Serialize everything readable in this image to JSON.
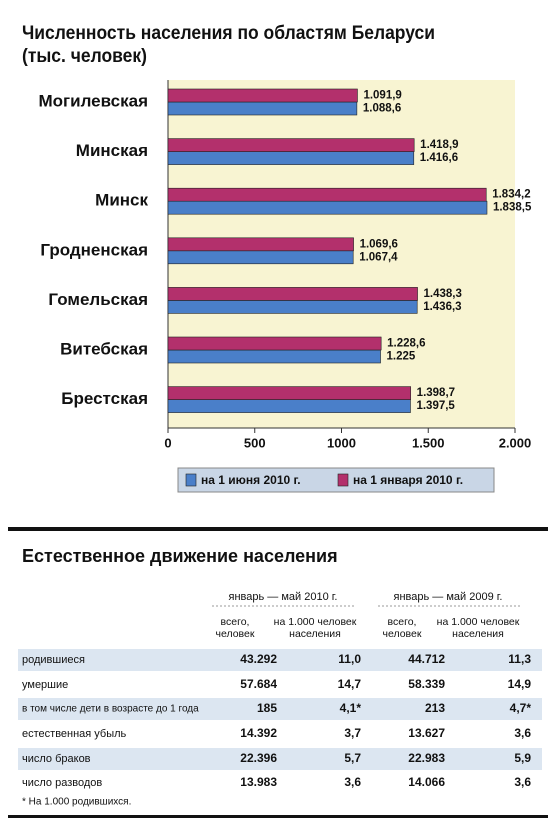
{
  "chart_data": {
    "type": "bar",
    "orientation": "horizontal",
    "title": "Численность населения по областям Беларуси (тыс. человек)",
    "categories": [
      "Могилевская",
      "Минская",
      "Минск",
      "Гродненская",
      "Гомельская",
      "Витебская",
      "Брестская"
    ],
    "series": [
      {
        "name": "на 1 июня 2010 г.",
        "color": "#4a7fc9",
        "values": [
          1088.6,
          1416.6,
          1838.5,
          1067.4,
          1436.3,
          1225,
          1397.5
        ],
        "value_labels": [
          "1.088,6",
          "1.416,6",
          "1.838,5",
          "1.067,4",
          "1.436,3",
          "1.225",
          "1.397,5"
        ]
      },
      {
        "name": "на 1 января 2010 г.",
        "color": "#b3306c",
        "values": [
          1091.9,
          1418.9,
          1834.2,
          1069.6,
          1438.3,
          1228.6,
          1398.7
        ],
        "value_labels": [
          "1.091,9",
          "1.418,9",
          "1.834,2",
          "1.069,6",
          "1.438,3",
          "1.228,6",
          "1.398,7"
        ]
      }
    ],
    "xlim": [
      0,
      2000
    ],
    "xticks": [
      0,
      500,
      1000,
      {
        "value": 1500,
        "label": "1.500"
      },
      {
        "value": 2000,
        "label": "2.000"
      }
    ],
    "legend": "bottom"
  },
  "table": {
    "title": "Естественное движение населения",
    "period_headers": [
      "январь — май 2010 г.",
      "январь — май 2009 г."
    ],
    "column_headers": [
      "всего, человек",
      "на 1.000 человек населения",
      "всего, человек",
      "на 1.000 человек населения"
    ],
    "rows": [
      [
        "родившиеся",
        "43.292",
        "11,0",
        "44.712",
        "11,3"
      ],
      [
        "умершие",
        "57.684",
        "14,7",
        "58.339",
        "14,9"
      ],
      [
        "в том числе дети в возрасте до 1 года",
        "185",
        "4,1*",
        "213",
        "4,7*"
      ],
      [
        "естественная убыль",
        "14.392",
        "3,7",
        "13.627",
        "3,6"
      ],
      [
        "число браков",
        "22.396",
        "5,7",
        "22.983",
        "5,9"
      ],
      [
        "число разводов",
        "13.983",
        "3,6",
        "14.066",
        "3,6"
      ]
    ],
    "footnote": "* На 1.000 родившихся."
  }
}
